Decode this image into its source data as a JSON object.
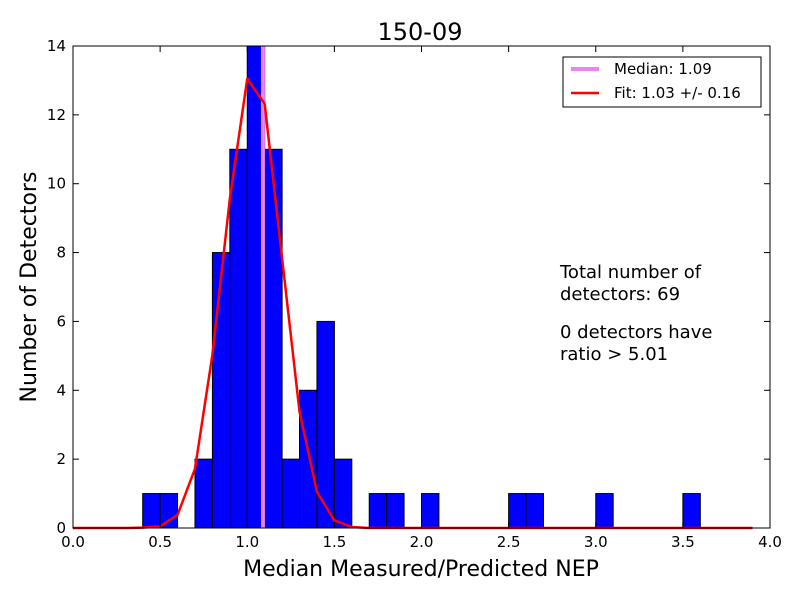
{
  "chart_data": {
    "type": "bar",
    "title": "150-09",
    "xlabel": "Median Measured/Predicted NEP",
    "ylabel": "Number of Detectors",
    "xlim": [
      0.0,
      4.0
    ],
    "ylim": [
      0,
      14
    ],
    "xticks": [
      "0.0",
      "0.5",
      "1.0",
      "1.5",
      "2.0",
      "2.5",
      "3.0",
      "3.5",
      "4.0"
    ],
    "yticks": [
      "0",
      "2",
      "4",
      "6",
      "8",
      "10",
      "12",
      "14"
    ],
    "grid": false,
    "legend_position": "top-right",
    "bin_width": 0.1,
    "bins": [
      {
        "x": 0.4,
        "count": 1
      },
      {
        "x": 0.5,
        "count": 1
      },
      {
        "x": 0.7,
        "count": 2
      },
      {
        "x": 0.8,
        "count": 8
      },
      {
        "x": 0.9,
        "count": 11
      },
      {
        "x": 1.0,
        "count": 14
      },
      {
        "x": 1.1,
        "count": 11
      },
      {
        "x": 1.2,
        "count": 2
      },
      {
        "x": 1.3,
        "count": 4
      },
      {
        "x": 1.4,
        "count": 6
      },
      {
        "x": 1.5,
        "count": 2
      },
      {
        "x": 1.7,
        "count": 1
      },
      {
        "x": 1.8,
        "count": 1
      },
      {
        "x": 2.0,
        "count": 1
      },
      {
        "x": 2.5,
        "count": 1
      },
      {
        "x": 2.6,
        "count": 1
      },
      {
        "x": 3.0,
        "count": 1
      },
      {
        "x": 3.5,
        "count": 1
      }
    ],
    "bar_color": "#0000ff",
    "median": {
      "value": 1.09,
      "label": "Median: 1.09",
      "color": "#ee82ee"
    },
    "fit": {
      "label": "Fit: 1.03 +/- 0.16",
      "color": "#ff0000",
      "x": [
        0.0,
        0.1,
        0.2,
        0.3,
        0.4,
        0.5,
        0.6,
        0.7,
        0.8,
        0.9,
        1.0,
        1.1,
        1.2,
        1.3,
        1.4,
        1.5,
        1.6,
        1.7,
        1.8,
        1.9,
        2.0,
        2.1,
        2.2,
        2.3,
        2.4,
        2.5,
        2.6,
        2.7,
        2.8,
        2.9,
        3.0,
        3.1,
        3.2,
        3.3,
        3.4,
        3.5,
        3.6,
        3.7,
        3.8,
        3.9
      ],
      "y": [
        0,
        0,
        0,
        0,
        0.01,
        0.05,
        0.38,
        1.72,
        5.03,
        9.56,
        13.05,
        12.32,
        7.83,
        3.38,
        1.05,
        0.22,
        0.03,
        0,
        0,
        0,
        0,
        0,
        0,
        0,
        0,
        0,
        0,
        0,
        0,
        0,
        0,
        0,
        0,
        0,
        0,
        0,
        0,
        0,
        0,
        0
      ]
    },
    "annotations": [
      {
        "lines": [
          "Total number of",
          "detectors: 69"
        ]
      },
      {
        "lines": [
          "0 detectors have",
          "ratio > 5.01"
        ]
      }
    ]
  }
}
